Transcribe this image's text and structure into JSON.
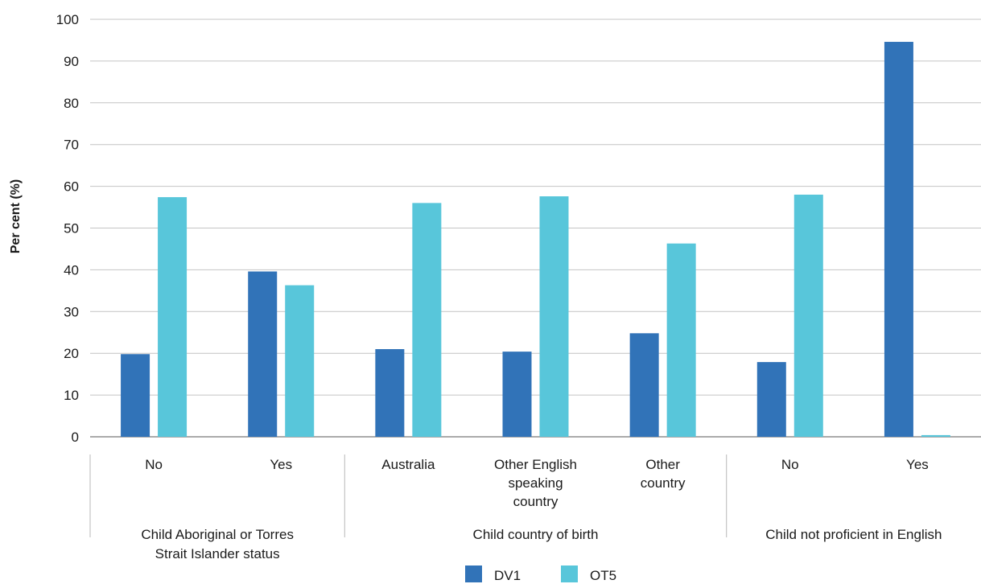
{
  "chart_data": {
    "type": "bar",
    "ylabel": "Per cent (%)",
    "ylim": [
      0,
      100
    ],
    "yticks": [
      0,
      10,
      20,
      30,
      40,
      50,
      60,
      70,
      80,
      90,
      100
    ],
    "grid": true,
    "legend_position": "bottom",
    "categories": [
      [
        "No"
      ],
      [
        "Yes"
      ],
      [
        "Australia"
      ],
      [
        "Other English",
        "speaking",
        "country"
      ],
      [
        "Other",
        "country"
      ],
      [
        "No"
      ],
      [
        "Yes"
      ]
    ],
    "groups": [
      {
        "label": [
          "Child Aboriginal or Torres",
          "Strait Islander status"
        ],
        "count": 2
      },
      {
        "label": [
          "Child country of birth"
        ],
        "count": 3
      },
      {
        "label": [
          "Child not proficient in English"
        ],
        "count": 2
      }
    ],
    "series": [
      {
        "name": "DV1",
        "color": "#3173b8",
        "values": [
          19.8,
          39.6,
          21.0,
          20.4,
          24.8,
          17.9,
          94.6
        ]
      },
      {
        "name": "OT5",
        "color": "#58c6da",
        "values": [
          57.4,
          36.3,
          56.0,
          57.6,
          46.3,
          58.0,
          0.4
        ]
      }
    ]
  }
}
